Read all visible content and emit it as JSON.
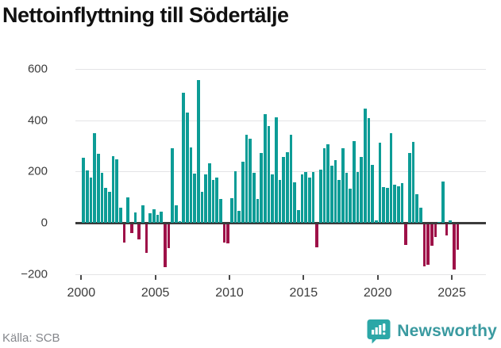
{
  "title": "Nettoinflyttning till Södertälje",
  "source": "Källa: SCB",
  "footer": {
    "brand": "Newsworthy"
  },
  "colors": {
    "positive": "#0d9c96",
    "negative": "#9e1148",
    "brand": "#3a9aa0",
    "brand_icon": "#2ba7a7",
    "grid": "#e4e4e6",
    "zero_line": "#3b3b3b",
    "title_text": "#111111",
    "axis_text": "#3c3c3c",
    "source_text": "#85878c"
  },
  "chart_data": {
    "type": "bar",
    "title": "Nettoinflyttning till Södertälje",
    "frequency": "quarterly",
    "x_start": {
      "year": 2000,
      "quarter": 1
    },
    "x_end": {
      "year": 2025,
      "quarter": 2
    },
    "values": [
      255,
      205,
      175,
      350,
      270,
      195,
      135,
      120,
      260,
      248,
      58,
      -70,
      100,
      -33,
      40,
      -58,
      67,
      -110,
      36,
      52,
      30,
      42,
      -168,
      -93,
      292,
      68,
      5,
      509,
      430,
      295,
      192,
      556,
      122,
      188,
      233,
      166,
      175,
      93,
      -70,
      -75,
      96,
      201,
      46,
      238,
      345,
      328,
      194,
      93,
      273,
      424,
      377,
      189,
      411,
      168,
      256,
      277,
      344,
      158,
      50,
      189,
      197,
      176,
      197,
      -90,
      207,
      290,
      307,
      222,
      245,
      168,
      290,
      194,
      132,
      320,
      197,
      258,
      445,
      408,
      226,
      8,
      313,
      139,
      137,
      349,
      150,
      142,
      156,
      -80,
      272,
      315,
      110,
      58,
      -165,
      -158,
      -85,
      -48,
      2,
      160,
      -43,
      8,
      -177,
      -100
    ],
    "xticks": [
      2000,
      2005,
      2010,
      2015,
      2020,
      2025
    ],
    "ytick_labels": [
      "600",
      "400",
      "200",
      "0",
      "−200"
    ],
    "ytick_values": [
      600,
      400,
      200,
      0,
      -200
    ],
    "ylim": [
      -230,
      630
    ],
    "grid": "horizontal",
    "legend": "none"
  }
}
